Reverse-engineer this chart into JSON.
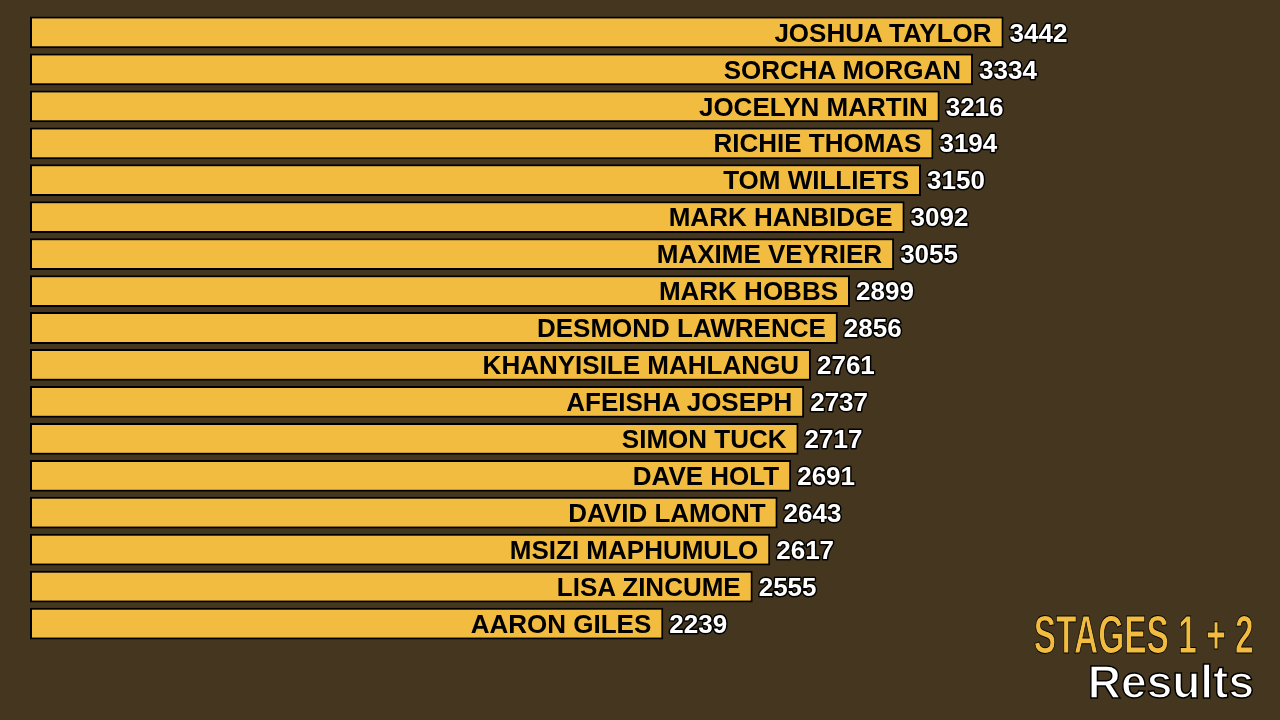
{
  "chart_data": {
    "type": "bar",
    "orientation": "horizontal",
    "title": "STAGES 1 + 2",
    "subtitle": "Results",
    "categories": [
      "JOSHUA TAYLOR",
      "SORCHA MORGAN",
      "JOCELYN MARTIN",
      "RICHIE THOMAS",
      "TOM WILLIETS",
      "MARK HANBIDGE",
      "MAXIME VEYRIER",
      "MARK HOBBS",
      "DESMOND LAWRENCE",
      "KHANYISILE MAHLANGU",
      "AFEISHA JOSEPH",
      "SIMON TUCK",
      "DAVE HOLT",
      "DAVID LAMONT",
      "MSIZI MAPHUMULO",
      "LISA ZINCUME",
      "AARON GILES"
    ],
    "values": [
      3442,
      3334,
      3216,
      3194,
      3150,
      3092,
      3055,
      2899,
      2856,
      2761,
      2737,
      2717,
      2691,
      2643,
      2617,
      2555,
      2239
    ],
    "color": "#f2bc40",
    "data_labels": true
  }
}
